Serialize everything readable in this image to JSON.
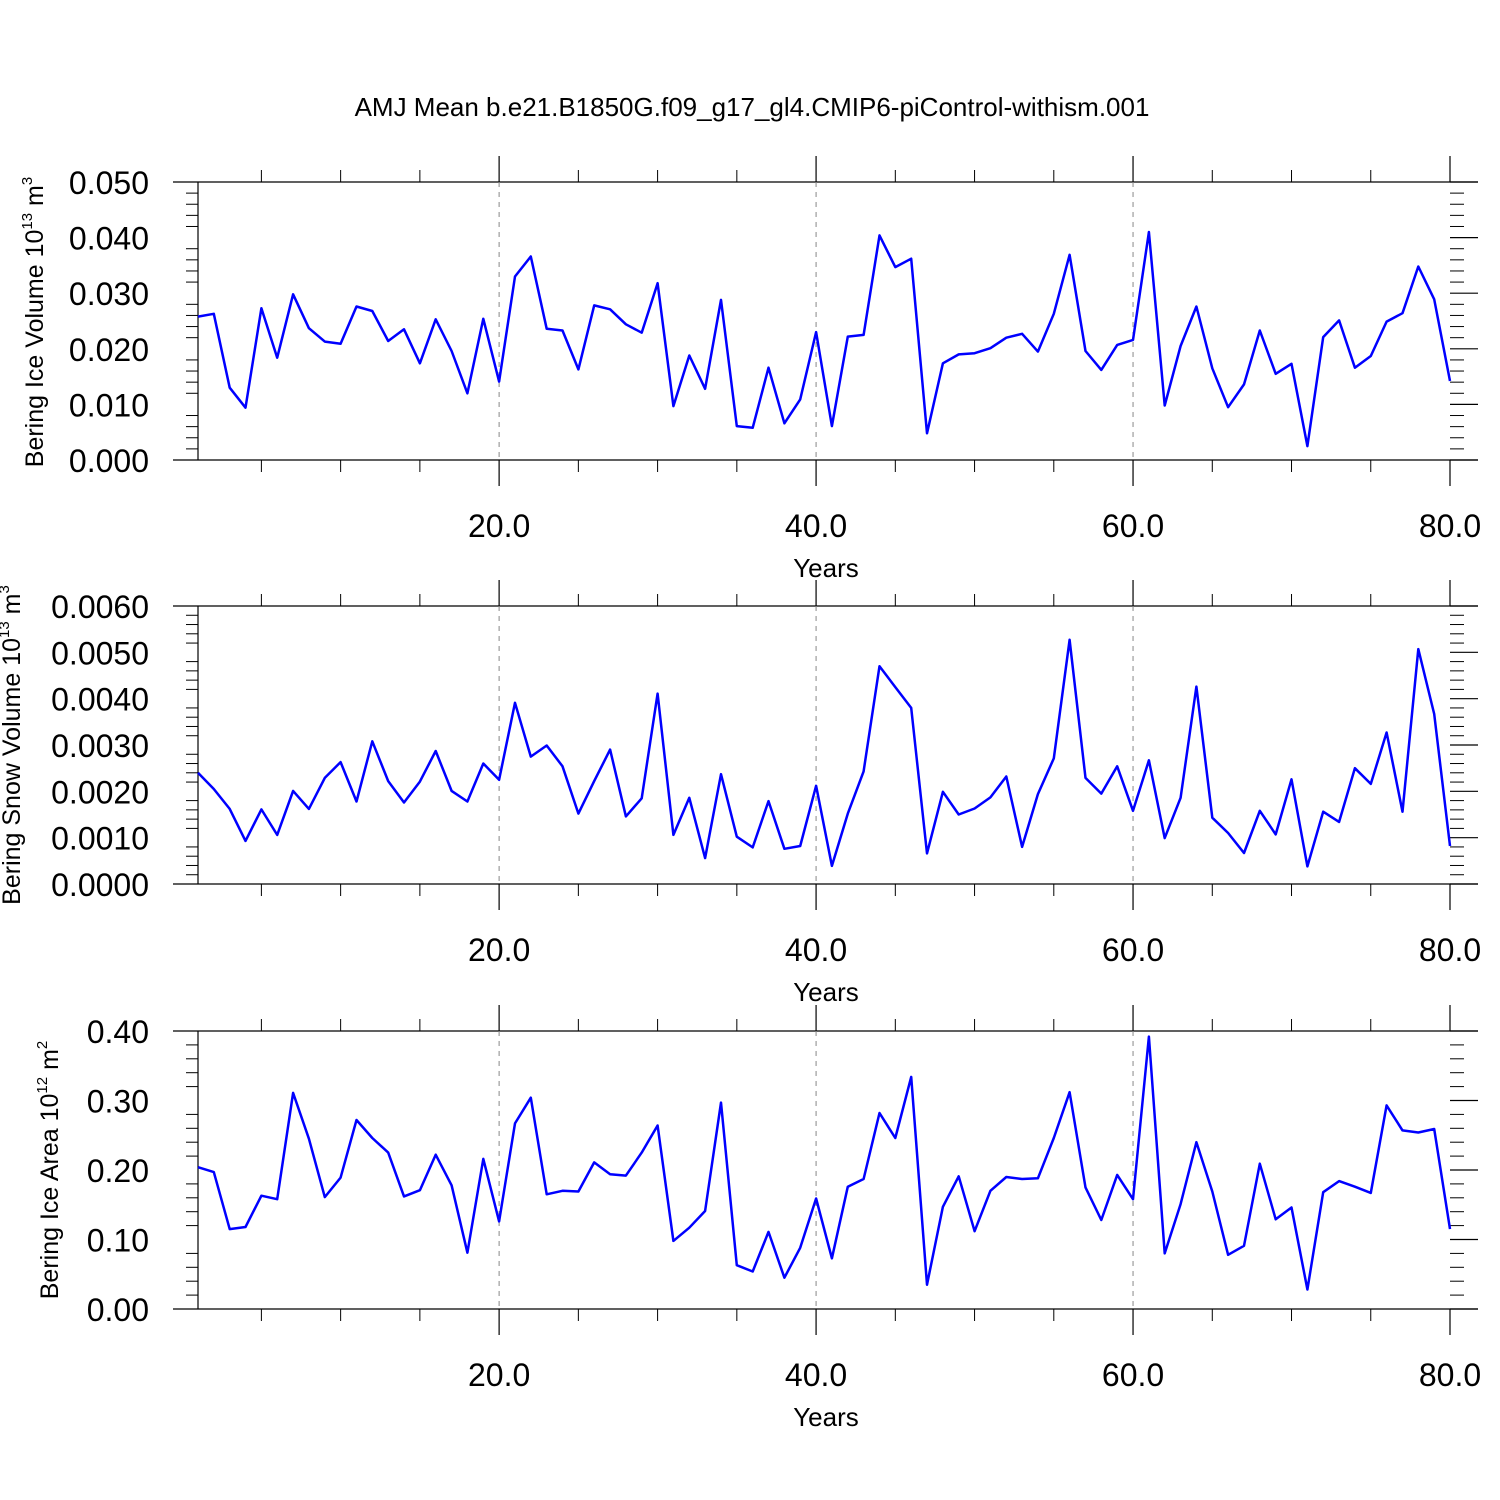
{
  "title": "AMJ Mean b.e21.B1850G.f09_g17_gl4.CMIP6-piControl-withism.001",
  "chart_data": [
    {
      "type": "line",
      "ylabel": {
        "text": "Bering Ice Volume 10",
        "exp": "13",
        "unit": " m",
        "unit_exp": "3"
      },
      "xlabel": "Years",
      "xlim": [
        1,
        80
      ],
      "ylim": [
        0,
        0.05
      ],
      "xticks": [
        "20.0",
        "40.0",
        "60.0",
        "80.0"
      ],
      "yticks": [
        "0.000",
        "0.010",
        "0.020",
        "0.030",
        "0.040",
        "0.050"
      ],
      "x_gridlines": [
        20,
        40,
        60
      ],
      "line_color": "#0000ff",
      "x": [
        1,
        2,
        3,
        4,
        5,
        6,
        7,
        8,
        9,
        10,
        11,
        12,
        13,
        14,
        15,
        16,
        17,
        18,
        19,
        20,
        21,
        22,
        23,
        24,
        25,
        26,
        27,
        28,
        29,
        30,
        31,
        32,
        33,
        34,
        35,
        36,
        37,
        38,
        39,
        40,
        41,
        42,
        43,
        44,
        45,
        46,
        47,
        48,
        49,
        50,
        51,
        52,
        53,
        54,
        55,
        56,
        57,
        58,
        59,
        60,
        61,
        62,
        63,
        64,
        65,
        66,
        67,
        68,
        69,
        70,
        71,
        72,
        73,
        74,
        75,
        76,
        77,
        78,
        79,
        80
      ],
      "values": [
        0.0258,
        0.0263,
        0.013,
        0.0094,
        0.0273,
        0.0184,
        0.0298,
        0.0237,
        0.0213,
        0.0209,
        0.0276,
        0.0268,
        0.0214,
        0.0235,
        0.0174,
        0.0253,
        0.0196,
        0.012,
        0.0254,
        0.0141,
        0.033,
        0.0366,
        0.0236,
        0.0233,
        0.0163,
        0.0278,
        0.0271,
        0.0244,
        0.0229,
        0.0318,
        0.0097,
        0.0188,
        0.0128,
        0.0288,
        0.0061,
        0.0058,
        0.0166,
        0.0066,
        0.0109,
        0.023,
        0.0061,
        0.0222,
        0.0225,
        0.0404,
        0.0347,
        0.0362,
        0.0048,
        0.0174,
        0.019,
        0.0192,
        0.0201,
        0.022,
        0.0227,
        0.0195,
        0.0263,
        0.0369,
        0.0196,
        0.0162,
        0.0207,
        0.0216,
        0.041,
        0.0098,
        0.0205,
        0.0276,
        0.0165,
        0.0095,
        0.0136,
        0.0233,
        0.0155,
        0.0173,
        0.0025,
        0.0221,
        0.0251,
        0.0166,
        0.0187,
        0.0249,
        0.0264,
        0.0348,
        0.0289,
        0.0142
      ]
    },
    {
      "type": "line",
      "ylabel": {
        "text": "Bering Snow Volume 10",
        "exp": "13",
        "unit": " m",
        "unit_exp": "3"
      },
      "xlabel": "Years",
      "xlim": [
        1,
        80
      ],
      "ylim": [
        0,
        0.006
      ],
      "xticks": [
        "20.0",
        "40.0",
        "60.0",
        "80.0"
      ],
      "yticks": [
        "0.0000",
        "0.0010",
        "0.0020",
        "0.0030",
        "0.0040",
        "0.0050",
        "0.0060"
      ],
      "x_gridlines": [
        20,
        40,
        60
      ],
      "line_color": "#0000ff",
      "x": [
        1,
        2,
        3,
        4,
        5,
        6,
        7,
        8,
        9,
        10,
        11,
        12,
        13,
        14,
        15,
        16,
        17,
        18,
        19,
        20,
        21,
        22,
        23,
        24,
        25,
        26,
        27,
        28,
        29,
        30,
        31,
        32,
        33,
        34,
        35,
        36,
        37,
        38,
        39,
        40,
        41,
        42,
        43,
        44,
        45,
        46,
        47,
        48,
        49,
        50,
        51,
        52,
        53,
        54,
        55,
        56,
        57,
        58,
        59,
        60,
        61,
        62,
        63,
        64,
        65,
        66,
        67,
        68,
        69,
        70,
        71,
        72,
        73,
        74,
        75,
        76,
        77,
        78,
        79,
        80
      ],
      "values": [
        0.0024,
        0.00205,
        0.00162,
        0.00093,
        0.00161,
        0.00106,
        0.00201,
        0.00162,
        0.00229,
        0.00263,
        0.00178,
        0.00308,
        0.00222,
        0.00176,
        0.00221,
        0.00287,
        0.00201,
        0.00178,
        0.0026,
        0.00225,
        0.00391,
        0.00275,
        0.00299,
        0.00254,
        0.00152,
        0.00222,
        0.0029,
        0.00146,
        0.00185,
        0.00411,
        0.00106,
        0.00186,
        0.00056,
        0.00237,
        0.00102,
        0.00079,
        0.00179,
        0.00076,
        0.00082,
        0.00212,
        0.00039,
        0.00152,
        0.00243,
        0.0047,
        0.00425,
        0.0038,
        0.00066,
        0.00199,
        0.0015,
        0.00163,
        0.00187,
        0.00232,
        0.0008,
        0.00194,
        0.00271,
        0.00527,
        0.00229,
        0.00195,
        0.00254,
        0.00158,
        0.00267,
        0.00099,
        0.00186,
        0.00426,
        0.00143,
        0.0011,
        0.00067,
        0.00158,
        0.00107,
        0.00226,
        0.00038,
        0.00156,
        0.00134,
        0.0025,
        0.00216,
        0.00327,
        0.00156,
        0.00507,
        0.00367,
        0.00082
      ]
    },
    {
      "type": "line",
      "ylabel": {
        "text": "Bering Ice Area 10",
        "exp": "12",
        "unit": " m",
        "unit_exp": "2"
      },
      "xlabel": "Years",
      "xlim": [
        1,
        80
      ],
      "ylim": [
        0,
        0.4
      ],
      "xticks": [
        "20.0",
        "40.0",
        "60.0",
        "80.0"
      ],
      "yticks": [
        "0.00",
        "0.10",
        "0.20",
        "0.30",
        "0.40"
      ],
      "x_gridlines": [
        20,
        40,
        60
      ],
      "line_color": "#0000ff",
      "x": [
        1,
        2,
        3,
        4,
        5,
        6,
        7,
        8,
        9,
        10,
        11,
        12,
        13,
        14,
        15,
        16,
        17,
        18,
        19,
        20,
        21,
        22,
        23,
        24,
        25,
        26,
        27,
        28,
        29,
        30,
        31,
        32,
        33,
        34,
        35,
        36,
        37,
        38,
        39,
        40,
        41,
        42,
        43,
        44,
        45,
        46,
        47,
        48,
        49,
        50,
        51,
        52,
        53,
        54,
        55,
        56,
        57,
        58,
        59,
        60,
        61,
        62,
        63,
        64,
        65,
        66,
        67,
        68,
        69,
        70,
        71,
        72,
        73,
        74,
        75,
        76,
        77,
        78,
        79,
        80
      ],
      "values": [
        0.204,
        0.197,
        0.115,
        0.118,
        0.163,
        0.158,
        0.311,
        0.245,
        0.161,
        0.189,
        0.272,
        0.246,
        0.225,
        0.162,
        0.171,
        0.222,
        0.178,
        0.081,
        0.216,
        0.126,
        0.267,
        0.304,
        0.165,
        0.17,
        0.169,
        0.211,
        0.194,
        0.192,
        0.225,
        0.264,
        0.098,
        0.117,
        0.141,
        0.297,
        0.063,
        0.054,
        0.111,
        0.045,
        0.088,
        0.159,
        0.073,
        0.176,
        0.187,
        0.282,
        0.246,
        0.334,
        0.035,
        0.147,
        0.191,
        0.112,
        0.17,
        0.19,
        0.187,
        0.188,
        0.246,
        0.312,
        0.175,
        0.128,
        0.193,
        0.158,
        0.392,
        0.08,
        0.151,
        0.24,
        0.169,
        0.078,
        0.091,
        0.209,
        0.129,
        0.146,
        0.028,
        0.168,
        0.184,
        0.176,
        0.167,
        0.293,
        0.257,
        0.254,
        0.259,
        0.115
      ]
    }
  ]
}
